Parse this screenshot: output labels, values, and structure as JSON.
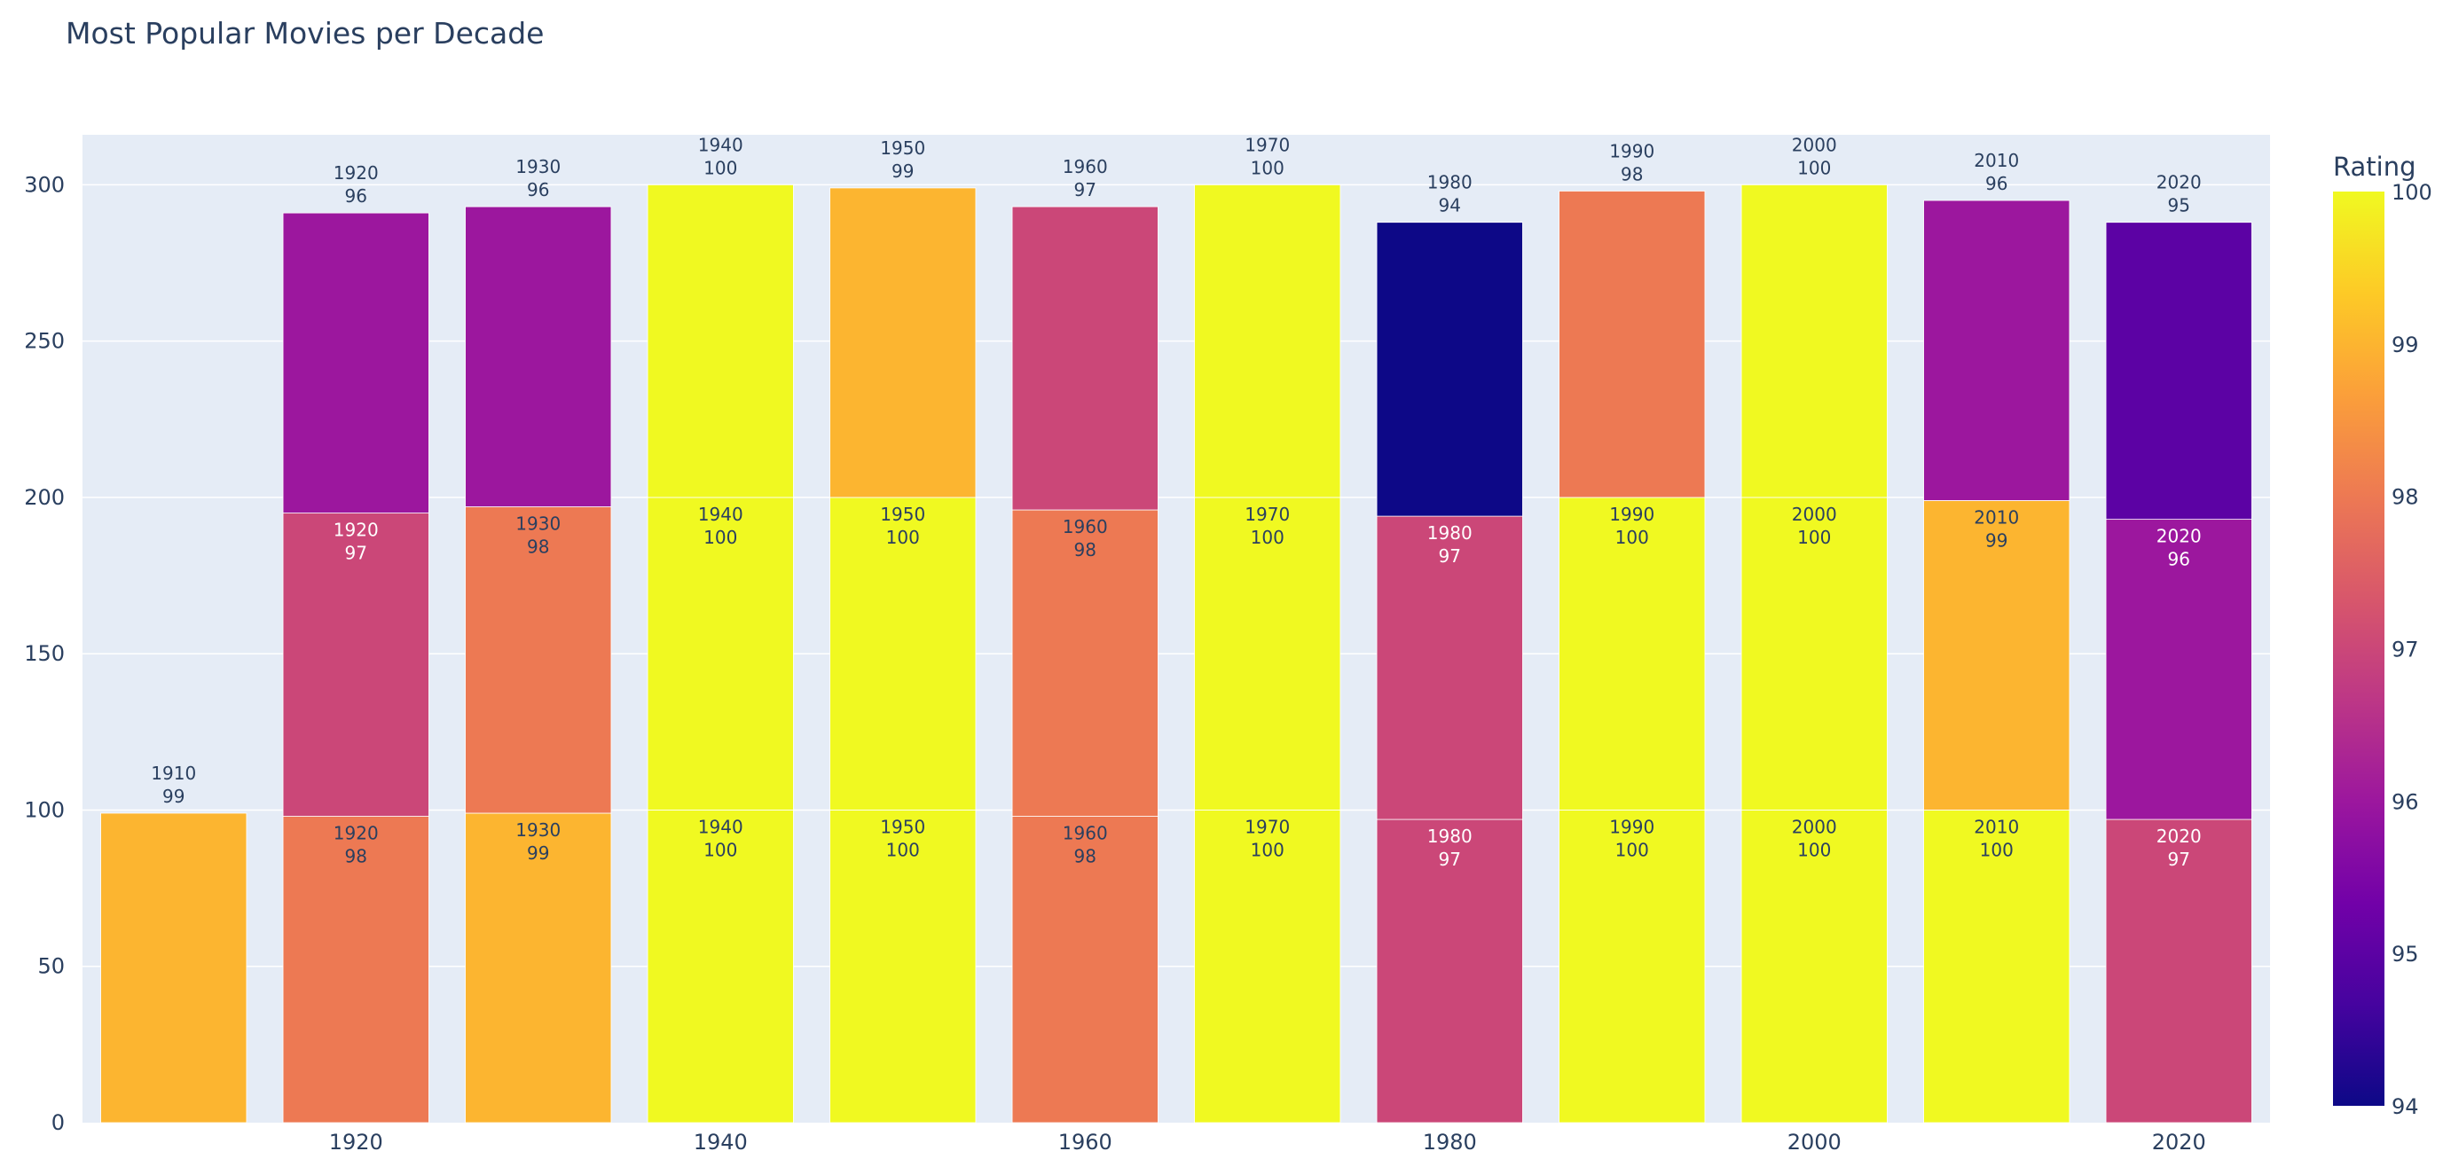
{
  "chart_data": {
    "type": "bar",
    "title": "Most Popular Movies per Decade",
    "xlabel": "",
    "ylabel": "",
    "ylim": [
      0,
      316
    ],
    "yticks": [
      0,
      50,
      100,
      150,
      200,
      250,
      300
    ],
    "xticks": [
      1920,
      1940,
      1960,
      1980,
      2000,
      2020
    ],
    "barmode": "stack",
    "grid": true,
    "colorbar": {
      "title": "Rating",
      "min": 94,
      "max": 100,
      "ticks": [
        94,
        95,
        96,
        97,
        98,
        99,
        100
      ],
      "scale": "Plasma"
    },
    "bars": [
      {
        "decade": 1910,
        "segments": [
          99
        ]
      },
      {
        "decade": 1920,
        "segments": [
          98,
          97,
          96
        ]
      },
      {
        "decade": 1930,
        "segments": [
          99,
          98,
          96
        ]
      },
      {
        "decade": 1940,
        "segments": [
          100,
          100,
          100
        ]
      },
      {
        "decade": 1950,
        "segments": [
          100,
          100,
          99
        ]
      },
      {
        "decade": 1960,
        "segments": [
          98,
          98,
          97
        ]
      },
      {
        "decade": 1970,
        "segments": [
          100,
          100,
          100
        ]
      },
      {
        "decade": 1980,
        "segments": [
          97,
          97,
          94
        ]
      },
      {
        "decade": 1990,
        "segments": [
          100,
          100,
          98
        ]
      },
      {
        "decade": 2000,
        "segments": [
          100,
          100,
          100
        ]
      },
      {
        "decade": 2010,
        "segments": [
          100,
          99,
          96
        ]
      },
      {
        "decade": 2020,
        "segments": [
          97,
          96,
          95
        ]
      }
    ]
  }
}
